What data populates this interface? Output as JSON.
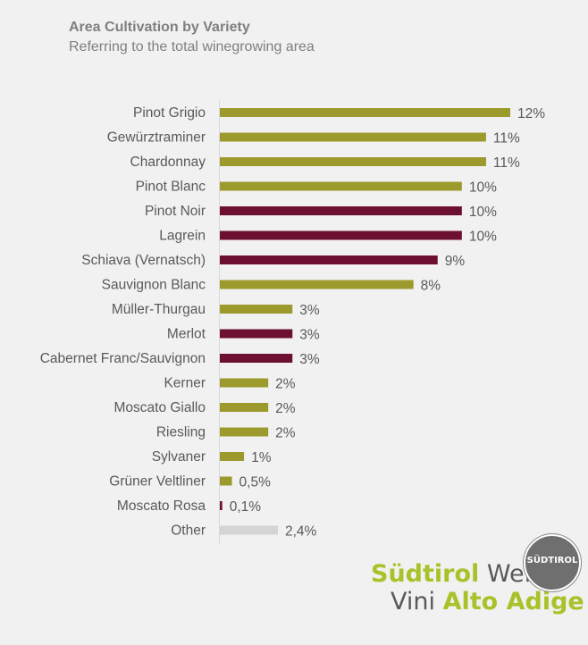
{
  "chart_data": {
    "type": "bar",
    "orientation": "horizontal",
    "title": "Area Cultivation by Variety",
    "subtitle": "Referring to the total winegrowing area",
    "categories": [
      "Pinot Grigio",
      "Gewürztraminer",
      "Chardonnay",
      "Pinot Blanc",
      "Pinot Noir",
      "Lagrein",
      "Schiava (Vernatsch)",
      "Sauvignon Blanc",
      "Müller-Thurgau",
      "Merlot",
      "Cabernet Franc/Sauvignon",
      "Kerner",
      "Moscato Giallo",
      "Riesling",
      "Sylvaner",
      "Grüner Veltliner",
      "Moscato Rosa",
      "Other"
    ],
    "values": [
      12,
      11,
      11,
      10,
      10,
      10,
      9,
      8,
      3,
      3,
      3,
      2,
      2,
      2,
      1,
      0.5,
      0.1,
      2.4
    ],
    "labels": [
      "12%",
      "11%",
      "11%",
      "10%",
      "10%",
      "10%",
      "9%",
      "8%",
      "3%",
      "3%",
      "3%",
      "2%",
      "2%",
      "2%",
      "1%",
      "0,5%",
      "0,1%",
      "2,4%"
    ],
    "wine_type": [
      "white",
      "white",
      "white",
      "white",
      "red",
      "red",
      "red",
      "white",
      "white",
      "red",
      "red",
      "white",
      "white",
      "white",
      "white",
      "white",
      "red",
      "other"
    ],
    "colors": {
      "white": "#9c9a2d",
      "red": "#6d0f30",
      "other": "#d4d4d4"
    },
    "xlim": [
      0,
      12
    ],
    "grid": false,
    "legend": "none"
  },
  "logo": {
    "line1_a": "Südtirol",
    "line1_b": "Wein",
    "line2_a": "Vini",
    "line2_b": "Alto Adige",
    "seal": "SÜDTIROL"
  }
}
